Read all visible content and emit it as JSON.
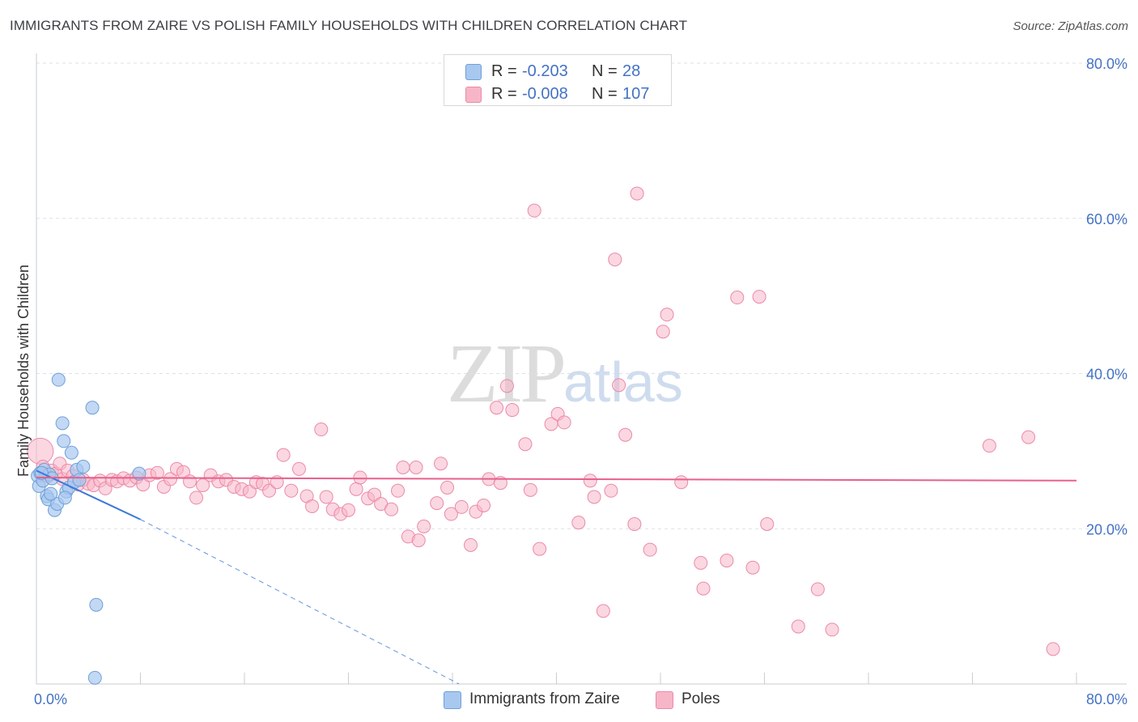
{
  "header": {
    "title": "IMMIGRANTS FROM ZAIRE VS POLISH FAMILY HOUSEHOLDS WITH CHILDREN CORRELATION CHART",
    "source": "Source: ZipAtlas.com"
  },
  "watermark": {
    "zip": "ZIP",
    "atlas": "atlas"
  },
  "legend_top": {
    "rows": [
      {
        "r_label": "R =",
        "r_value": "-0.203",
        "n_label": "N =",
        "n_value": "28",
        "color": "#a8c8f0"
      },
      {
        "r_label": "R =",
        "r_value": "-0.008",
        "n_label": "N =",
        "n_value": "107",
        "color": "#f7b6c8"
      }
    ]
  },
  "legend_bottom": {
    "items": [
      {
        "label": "Immigrants from Zaire",
        "color": "#a8c8f0"
      },
      {
        "label": "Poles",
        "color": "#f7b6c8"
      }
    ]
  },
  "chart_data": {
    "type": "scatter",
    "title": "IMMIGRANTS FROM ZAIRE VS POLISH FAMILY HOUSEHOLDS WITH CHILDREN CORRELATION CHART",
    "xlabel": "",
    "ylabel": "Family Households with Children",
    "xlim": [
      0,
      80
    ],
    "ylim": [
      0,
      80
    ],
    "x_tick_labels": [
      "0.0%",
      "80.0%"
    ],
    "y_ticks": [
      20,
      40,
      60,
      80
    ],
    "y_tick_labels": [
      "20.0%",
      "40.0%",
      "60.0%",
      "80.0%"
    ],
    "grid": true,
    "series": [
      {
        "name": "Immigrants from Zaire",
        "color": "#a8c8f0",
        "edge_color": "#6f9fd8",
        "trend_color": "#3b78d8",
        "trend_solid": [
          [
            0,
            27.5
          ],
          [
            8,
            21.2
          ]
        ],
        "trend_dashed": [
          [
            8,
            21.2
          ],
          [
            32.5,
            0
          ]
        ],
        "points": [
          [
            0.1,
            26.8
          ],
          [
            0.2,
            25.5
          ],
          [
            0.3,
            27.2
          ],
          [
            0.5,
            26.2
          ],
          [
            0.6,
            27.6
          ],
          [
            0.8,
            24.2
          ],
          [
            0.9,
            23.8
          ],
          [
            1.0,
            27.0
          ],
          [
            1.2,
            26.5
          ],
          [
            1.4,
            22.4
          ],
          [
            1.6,
            23.2
          ],
          [
            1.7,
            39.2
          ],
          [
            2.0,
            33.6
          ],
          [
            2.1,
            31.3
          ],
          [
            2.3,
            24.8
          ],
          [
            2.5,
            25.3
          ],
          [
            2.7,
            29.8
          ],
          [
            2.9,
            26.0
          ],
          [
            3.1,
            27.6
          ],
          [
            3.3,
            26.3
          ],
          [
            3.6,
            28.0
          ],
          [
            4.3,
            35.6
          ],
          [
            7.9,
            27.1
          ],
          [
            4.6,
            10.2
          ],
          [
            4.5,
            0.8
          ],
          [
            1.1,
            24.5
          ],
          [
            2.2,
            24.0
          ],
          [
            0.4,
            27.2
          ]
        ]
      },
      {
        "name": "Poles",
        "color": "#f7b6c8",
        "edge_color": "#eb8aa8",
        "trend_color": "#e8608c",
        "trend_solid": [
          [
            0,
            26.6
          ],
          [
            80,
            26.2
          ]
        ],
        "points": [
          [
            0.3,
            30.0
          ],
          [
            0.5,
            28.0
          ],
          [
            0.9,
            26.8
          ],
          [
            1.2,
            27.5
          ],
          [
            1.5,
            27.1
          ],
          [
            1.8,
            28.4
          ],
          [
            2.0,
            26.4
          ],
          [
            2.4,
            27.5
          ],
          [
            2.8,
            26.8
          ],
          [
            3.2,
            25.7
          ],
          [
            3.6,
            26.3
          ],
          [
            4.0,
            25.8
          ],
          [
            4.4,
            25.6
          ],
          [
            4.9,
            26.2
          ],
          [
            5.3,
            25.2
          ],
          [
            5.8,
            26.3
          ],
          [
            6.2,
            26.1
          ],
          [
            6.7,
            26.5
          ],
          [
            7.2,
            26.2
          ],
          [
            7.7,
            26.6
          ],
          [
            8.2,
            25.7
          ],
          [
            8.7,
            26.9
          ],
          [
            9.3,
            27.2
          ],
          [
            9.8,
            25.4
          ],
          [
            10.3,
            26.4
          ],
          [
            10.8,
            27.7
          ],
          [
            11.3,
            27.3
          ],
          [
            11.8,
            26.1
          ],
          [
            12.3,
            24.0
          ],
          [
            12.8,
            25.6
          ],
          [
            13.4,
            26.9
          ],
          [
            14.0,
            26.1
          ],
          [
            14.6,
            26.3
          ],
          [
            15.2,
            25.4
          ],
          [
            15.8,
            25.1
          ],
          [
            16.4,
            24.8
          ],
          [
            16.9,
            26.0
          ],
          [
            17.4,
            25.8
          ],
          [
            17.9,
            24.9
          ],
          [
            18.5,
            26.0
          ],
          [
            19.0,
            29.5
          ],
          [
            19.6,
            24.9
          ],
          [
            20.2,
            27.7
          ],
          [
            20.8,
            24.2
          ],
          [
            21.2,
            22.9
          ],
          [
            21.9,
            32.8
          ],
          [
            22.3,
            24.1
          ],
          [
            22.8,
            22.5
          ],
          [
            23.4,
            21.9
          ],
          [
            24.0,
            22.4
          ],
          [
            24.6,
            25.1
          ],
          [
            24.9,
            26.6
          ],
          [
            25.5,
            23.9
          ],
          [
            26.0,
            24.4
          ],
          [
            26.5,
            23.2
          ],
          [
            27.3,
            22.5
          ],
          [
            27.8,
            24.9
          ],
          [
            28.2,
            27.9
          ],
          [
            28.6,
            19.0
          ],
          [
            29.2,
            27.9
          ],
          [
            29.4,
            18.5
          ],
          [
            29.8,
            20.3
          ],
          [
            30.8,
            23.3
          ],
          [
            31.1,
            28.4
          ],
          [
            31.6,
            25.3
          ],
          [
            31.9,
            21.9
          ],
          [
            32.7,
            22.8
          ],
          [
            33.4,
            17.9
          ],
          [
            33.8,
            22.2
          ],
          [
            34.4,
            23.0
          ],
          [
            34.8,
            26.4
          ],
          [
            35.4,
            35.6
          ],
          [
            35.7,
            25.9
          ],
          [
            36.2,
            38.4
          ],
          [
            36.6,
            35.3
          ],
          [
            37.6,
            30.9
          ],
          [
            38.0,
            25.0
          ],
          [
            38.3,
            61.0
          ],
          [
            38.7,
            17.4
          ],
          [
            39.6,
            33.5
          ],
          [
            40.1,
            34.8
          ],
          [
            40.6,
            33.7
          ],
          [
            41.7,
            20.8
          ],
          [
            42.6,
            26.2
          ],
          [
            42.9,
            24.1
          ],
          [
            43.6,
            9.4
          ],
          [
            44.2,
            24.9
          ],
          [
            44.5,
            54.7
          ],
          [
            44.8,
            38.5
          ],
          [
            45.3,
            32.1
          ],
          [
            46.0,
            20.6
          ],
          [
            46.2,
            63.2
          ],
          [
            47.2,
            17.3
          ],
          [
            48.2,
            45.4
          ],
          [
            48.5,
            47.6
          ],
          [
            49.6,
            26.0
          ],
          [
            51.1,
            15.6
          ],
          [
            51.3,
            12.3
          ],
          [
            53.1,
            15.9
          ],
          [
            53.9,
            49.8
          ],
          [
            55.1,
            15.0
          ],
          [
            55.6,
            49.9
          ],
          [
            56.2,
            20.6
          ],
          [
            58.6,
            7.4
          ],
          [
            60.1,
            12.2
          ],
          [
            61.2,
            7.0
          ],
          [
            73.3,
            30.7
          ],
          [
            76.3,
            31.8
          ],
          [
            78.2,
            4.5
          ]
        ]
      }
    ]
  }
}
